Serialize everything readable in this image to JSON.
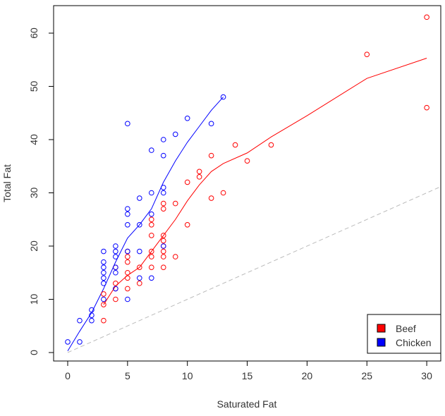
{
  "chart_data": {
    "type": "scatter",
    "title": "",
    "xlabel": "Saturated Fat",
    "ylabel": "Total Fat",
    "xlim": [
      -1.2,
      31.2
    ],
    "ylim": [
      -1.5,
      65
    ],
    "xticks": [
      0,
      5,
      10,
      15,
      20,
      25,
      30
    ],
    "yticks": [
      0,
      10,
      20,
      30,
      40,
      50,
      60
    ],
    "grid": false,
    "legend_position": "bottom-right",
    "reference_line": {
      "slope": 1,
      "intercept": 0,
      "style": "dashed",
      "color": "#bbbbbb"
    },
    "series": [
      {
        "name": "Beef",
        "color": "#ff0000",
        "points": [
          [
            3,
            11
          ],
          [
            3,
            9
          ],
          [
            3,
            6
          ],
          [
            4,
            16
          ],
          [
            4,
            13
          ],
          [
            4,
            12
          ],
          [
            4,
            10
          ],
          [
            5,
            19
          ],
          [
            5,
            18
          ],
          [
            5,
            17
          ],
          [
            5,
            15
          ],
          [
            5,
            14
          ],
          [
            5,
            12
          ],
          [
            6,
            16
          ],
          [
            6,
            13
          ],
          [
            7,
            25
          ],
          [
            7,
            24
          ],
          [
            7,
            22
          ],
          [
            7,
            19
          ],
          [
            7,
            18
          ],
          [
            7,
            16
          ],
          [
            8,
            28
          ],
          [
            8,
            27
          ],
          [
            8,
            22
          ],
          [
            8,
            21
          ],
          [
            8,
            20
          ],
          [
            8,
            19
          ],
          [
            8,
            18
          ],
          [
            8,
            16
          ],
          [
            9,
            28
          ],
          [
            9,
            18
          ],
          [
            10,
            32
          ],
          [
            10,
            24
          ],
          [
            11,
            34
          ],
          [
            11,
            33
          ],
          [
            12,
            37
          ],
          [
            12,
            29
          ],
          [
            13,
            30
          ],
          [
            14,
            39
          ],
          [
            15,
            36
          ],
          [
            17,
            39
          ],
          [
            25,
            56
          ],
          [
            30,
            63
          ],
          [
            30,
            46
          ]
        ],
        "smooth": [
          [
            3,
            9
          ],
          [
            4,
            12.5
          ],
          [
            5,
            14.5
          ],
          [
            6,
            16
          ],
          [
            7,
            19
          ],
          [
            8,
            22
          ],
          [
            9,
            25
          ],
          [
            10,
            28.5
          ],
          [
            11,
            31.5
          ],
          [
            12,
            34
          ],
          [
            13,
            35.5
          ],
          [
            15,
            37.5
          ],
          [
            17,
            40.5
          ],
          [
            20,
            44.5
          ],
          [
            25,
            51.5
          ],
          [
            30,
            55.3
          ]
        ]
      },
      {
        "name": "Chicken",
        "color": "#0000ff",
        "points": [
          [
            0,
            2
          ],
          [
            1,
            6
          ],
          [
            1,
            2
          ],
          [
            2,
            8
          ],
          [
            2,
            7
          ],
          [
            2,
            6
          ],
          [
            3,
            19
          ],
          [
            3,
            17
          ],
          [
            3,
            16
          ],
          [
            3,
            15
          ],
          [
            3,
            14
          ],
          [
            3,
            13
          ],
          [
            3,
            10
          ],
          [
            4,
            20
          ],
          [
            4,
            19
          ],
          [
            4,
            18
          ],
          [
            4,
            16
          ],
          [
            4,
            15
          ],
          [
            4,
            12
          ],
          [
            5,
            43
          ],
          [
            5,
            27
          ],
          [
            5,
            26
          ],
          [
            5,
            24
          ],
          [
            5,
            19
          ],
          [
            5,
            10
          ],
          [
            6,
            29
          ],
          [
            6,
            24
          ],
          [
            6,
            19
          ],
          [
            6,
            14
          ],
          [
            7,
            38
          ],
          [
            7,
            30
          ],
          [
            7,
            26
          ],
          [
            7,
            14
          ],
          [
            8,
            40
          ],
          [
            8,
            37
          ],
          [
            8,
            31
          ],
          [
            8,
            30
          ],
          [
            8,
            20
          ],
          [
            9,
            41
          ],
          [
            10,
            44
          ],
          [
            12,
            43
          ],
          [
            13,
            48
          ]
        ],
        "smooth": [
          [
            0,
            0.3
          ],
          [
            1,
            4
          ],
          [
            2,
            7.5
          ],
          [
            3,
            12
          ],
          [
            4,
            17
          ],
          [
            5,
            21.5
          ],
          [
            6,
            24
          ],
          [
            7,
            27
          ],
          [
            8,
            32
          ],
          [
            9,
            36
          ],
          [
            10,
            39.5
          ],
          [
            11,
            42.5
          ],
          [
            12,
            45.5
          ],
          [
            13,
            48
          ]
        ]
      }
    ]
  }
}
